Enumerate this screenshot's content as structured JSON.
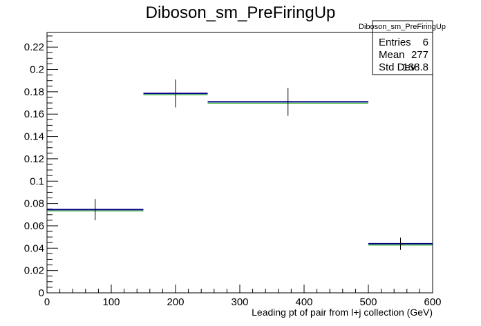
{
  "chart_data": {
    "type": "histogram",
    "title": "Diboson_sm_PreFiringUp",
    "xlabel": "Leading pt of pair from l+j collection (GeV)",
    "ylabel": "",
    "xlim": [
      0,
      600
    ],
    "ylim": [
      0,
      0.2331
    ],
    "x_ticks": [
      0,
      100,
      200,
      300,
      400,
      500,
      600
    ],
    "y_ticks": [
      0,
      0.02,
      0.04,
      0.06,
      0.08,
      0.1,
      0.12,
      0.14,
      0.16,
      0.18,
      0.2,
      0.22
    ],
    "grid": false,
    "bins": [
      {
        "low": 0,
        "high": 150,
        "value": 0.0745,
        "error": 0.0095
      },
      {
        "low": 150,
        "high": 250,
        "value": 0.1785,
        "error": 0.0125
      },
      {
        "low": 250,
        "high": 500,
        "value": 0.171,
        "error": 0.0125
      },
      {
        "low": 500,
        "high": 600,
        "value": 0.044,
        "error": 0.0055
      }
    ],
    "series_colors": {
      "primary": "#000080",
      "overlay": "#00aa00",
      "errors": "#000000"
    },
    "stats_box": {
      "title": "Diboson_sm_PreFiringUp",
      "rows": [
        {
          "label": "Entries",
          "value": "6"
        },
        {
          "label": "Mean",
          "value": "277"
        },
        {
          "label": "Std Dev",
          "value": "138.8"
        }
      ]
    }
  }
}
